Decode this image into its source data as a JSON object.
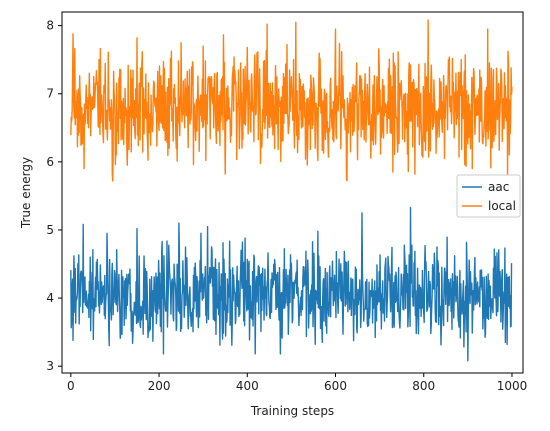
{
  "chart_data": {
    "type": "line",
    "title": "",
    "xlabel": "Training steps",
    "ylabel": "True energy",
    "xlim": [
      -20,
      1025
    ],
    "ylim": [
      2.9,
      8.2
    ],
    "xticks": [
      0,
      200,
      400,
      600,
      800,
      1000
    ],
    "yticks": [
      3,
      4,
      5,
      6,
      7,
      8
    ],
    "grid": false,
    "legend_position": "center-right",
    "series": [
      {
        "name": "aac",
        "color": "#1f77b4",
        "pattern": "noisy-fluctuation",
        "n_points": 1001,
        "mean": 4.05,
        "std": 0.32,
        "min": 3.08,
        "max": 5.33,
        "peaks": [
          [
            5,
            3.38
          ],
          [
            7,
            4.62
          ],
          [
            28,
            5.08
          ],
          [
            82,
            4.95
          ],
          [
            150,
            5.02
          ],
          [
            210,
            3.18
          ],
          [
            245,
            5.1
          ],
          [
            295,
            4.95
          ],
          [
            310,
            5.05
          ],
          [
            395,
            4.88
          ],
          [
            475,
            3.18
          ],
          [
            560,
            4.98
          ],
          [
            660,
            5.25
          ],
          [
            690,
            3.42
          ],
          [
            770,
            5.33
          ],
          [
            830,
            4.75
          ],
          [
            870,
            4.62
          ],
          [
            900,
            3.08
          ],
          [
            960,
            4.72
          ],
          [
            985,
            3.35
          ]
        ]
      },
      {
        "name": "local",
        "color": "#ff7f0e",
        "pattern": "noisy-fluctuation",
        "n_points": 1001,
        "mean": 6.8,
        "std": 0.38,
        "min": 5.72,
        "max": 8.08,
        "peaks": [
          [
            2,
            6.6
          ],
          [
            5,
            7.88
          ],
          [
            15,
            6.22
          ],
          [
            30,
            5.9
          ],
          [
            42,
            7.3
          ],
          [
            95,
            5.72
          ],
          [
            150,
            7.82
          ],
          [
            250,
            5.72
          ],
          [
            250,
            7.75
          ],
          [
            300,
            7.7
          ],
          [
            350,
            5.82
          ],
          [
            400,
            7.68
          ],
          [
            445,
            8.02
          ],
          [
            510,
            8.05
          ],
          [
            560,
            6.02
          ],
          [
            600,
            7.95
          ],
          [
            625,
            5.75
          ],
          [
            730,
            5.85
          ],
          [
            780,
            5.82
          ],
          [
            810,
            8.08
          ],
          [
            910,
            5.9
          ],
          [
            945,
            7.95
          ],
          [
            990,
            5.8
          ],
          [
            1000,
            7.1
          ]
        ]
      }
    ]
  }
}
